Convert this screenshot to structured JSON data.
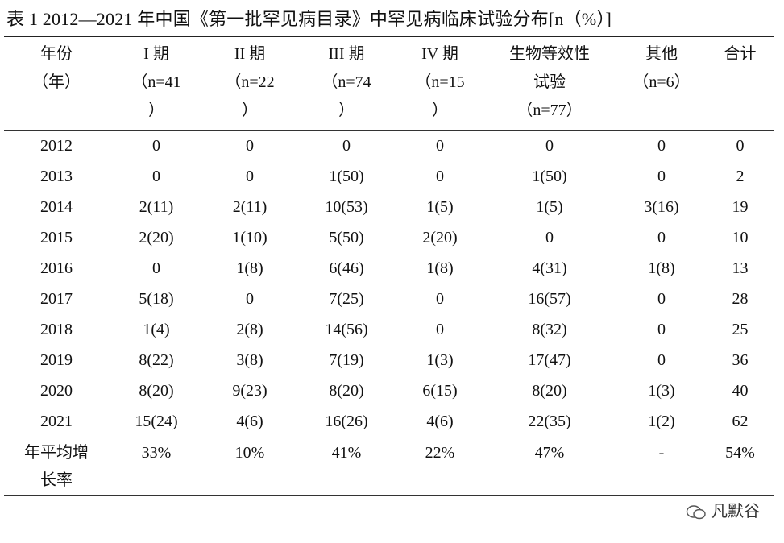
{
  "title": "表 1 2012—2021 年中国《第一批罕见病目录》中罕见病临床试验分布[n（%）]",
  "table": {
    "headers": [
      [
        "年份",
        "（年）"
      ],
      [
        "I 期",
        "（n=41",
        "）"
      ],
      [
        "II 期",
        "（n=22",
        "）"
      ],
      [
        "III 期",
        "（n=74",
        "）"
      ],
      [
        "IV 期",
        "（n=15",
        "）"
      ],
      [
        "生物等效性",
        "试验",
        "（n=77）"
      ],
      [
        "其他",
        "（n=6）"
      ],
      [
        "合计"
      ]
    ],
    "rows": [
      [
        "2012",
        "0",
        "0",
        "0",
        "0",
        "0",
        "0",
        "0"
      ],
      [
        "2013",
        "0",
        "0",
        "1(50)",
        "0",
        "1(50)",
        "0",
        "2"
      ],
      [
        "2014",
        "2(11)",
        "2(11)",
        "10(53)",
        "1(5)",
        "1(5)",
        "3(16)",
        "19"
      ],
      [
        "2015",
        "2(20)",
        "1(10)",
        "5(50)",
        "2(20)",
        "0",
        "0",
        "10"
      ],
      [
        "2016",
        "0",
        "1(8)",
        "6(46)",
        "1(8)",
        "4(31)",
        "1(8)",
        "13"
      ],
      [
        "2017",
        "5(18)",
        "0",
        "7(25)",
        "0",
        "16(57)",
        "0",
        "28"
      ],
      [
        "2018",
        "1(4)",
        "2(8)",
        "14(56)",
        "0",
        "8(32)",
        "0",
        "25"
      ],
      [
        "2019",
        "8(22)",
        "3(8)",
        "7(19)",
        "1(3)",
        "17(47)",
        "0",
        "36"
      ],
      [
        "2020",
        "8(20)",
        "9(23)",
        "8(20)",
        "6(15)",
        "8(20)",
        "1(3)",
        "40"
      ],
      [
        "2021",
        "15(24)",
        "4(6)",
        "16(26)",
        "4(6)",
        "22(35)",
        "1(2)",
        "62"
      ],
      [
        "年平均增长率",
        "33%",
        "10%",
        "41%",
        "22%",
        "47%",
        "-",
        "54%"
      ]
    ]
  },
  "watermark": "凡默谷"
}
